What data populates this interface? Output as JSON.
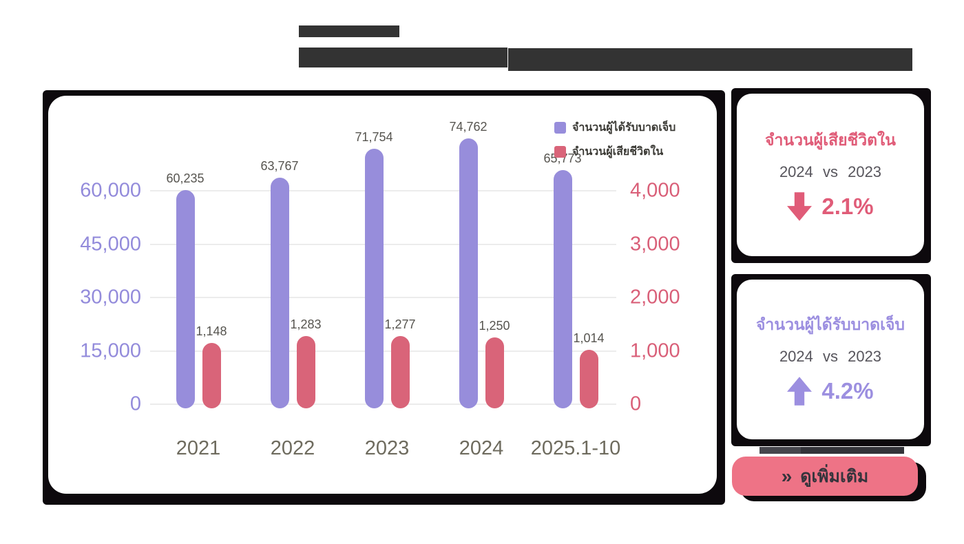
{
  "colors": {
    "injured_series": "#978ddb",
    "deaths_series": "#d96479",
    "left_axis_text": "#938bdb",
    "right_axis_text": "#d95f78",
    "button_pink": "#ee7386",
    "frame_black": "#0d090d"
  },
  "chart_data": {
    "type": "bar",
    "categories": [
      "2021",
      "2022",
      "2023",
      "2024",
      "2025.1-10"
    ],
    "series": [
      {
        "name": "จำนวนผู้ได้รับบาดเจ็บ",
        "axis": "left",
        "color": "#978ddb",
        "values": [
          60235,
          63767,
          71754,
          74762,
          65773
        ],
        "labels": [
          "60,235",
          "63,767",
          "71,754",
          "74,762",
          "65,773"
        ]
      },
      {
        "name": "จำนวนผู้เสียชีวิตใน",
        "axis": "right",
        "color": "#d96479",
        "values": [
          1148,
          1283,
          1277,
          1250,
          1014
        ],
        "labels": [
          "1,148",
          "1,283",
          "1,277",
          "1,250",
          "1,014"
        ]
      }
    ],
    "left_axis": {
      "ticks": [
        "0",
        "15,000",
        "30,000",
        "45,000",
        "60,000"
      ],
      "min": 0,
      "max": 60000
    },
    "right_axis": {
      "ticks": [
        "0",
        "1,000",
        "2,000",
        "3,000",
        "4,000"
      ],
      "min": 0,
      "max": 4000
    },
    "grid": true,
    "legend_position": "top-right"
  },
  "stat_cards": [
    {
      "title": "จำนวนผู้เสียชีวิตใน",
      "compare": "2024 vs 2023",
      "direction": "down",
      "percent": "2.1%"
    },
    {
      "title": "จำนวนผู้ได้รับบาดเจ็บ",
      "compare": "2024 vs 2023",
      "direction": "up",
      "percent": "4.2%"
    }
  ],
  "more_button": {
    "chevron": "»",
    "label": "ดูเพิ่มเติม"
  }
}
